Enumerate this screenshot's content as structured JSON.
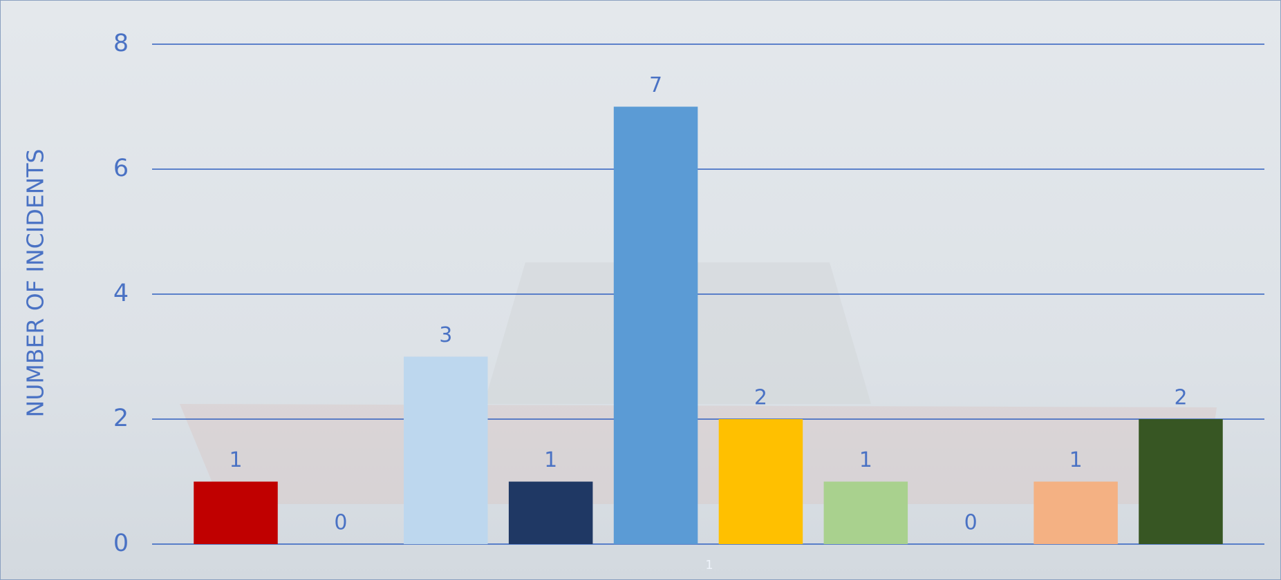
{
  "chart_data": {
    "type": "bar",
    "y_label": "NUMBER OF INCIDENTS",
    "categories": [
      "1"
    ],
    "series": [
      {
        "color": "#c00000",
        "values": [
          1
        ]
      },
      {
        "color": "#ed7d31",
        "values": [
          0
        ]
      },
      {
        "color": "#bdd7ee",
        "values": [
          3
        ]
      },
      {
        "color": "#1f3864",
        "values": [
          1
        ]
      },
      {
        "color": "#5b9bd5",
        "values": [
          7
        ]
      },
      {
        "color": "#ffc000",
        "values": [
          2
        ]
      },
      {
        "color": "#a9d18e",
        "values": [
          1
        ]
      },
      {
        "color": "#7f7f7f",
        "values": [
          0
        ]
      },
      {
        "color": "#f4b183",
        "values": [
          1
        ]
      },
      {
        "color": "#375623",
        "values": [
          2
        ]
      }
    ],
    "ylim": [
      0,
      8
    ],
    "yticks": [
      0,
      2,
      4,
      6,
      8
    ],
    "grid": true,
    "grid_color": "#2f5fbf"
  }
}
